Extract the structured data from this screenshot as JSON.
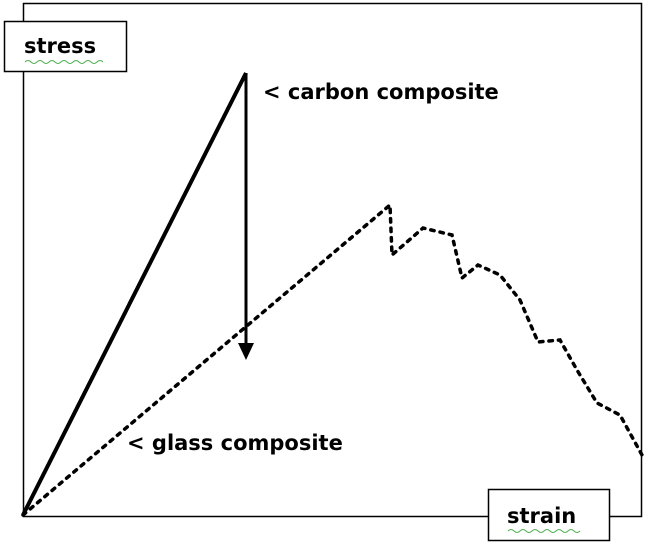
{
  "labels": {
    "y_axis": "stress",
    "x_axis": "strain",
    "carbon": "< carbon composite",
    "glass": "< glass composite"
  }
}
